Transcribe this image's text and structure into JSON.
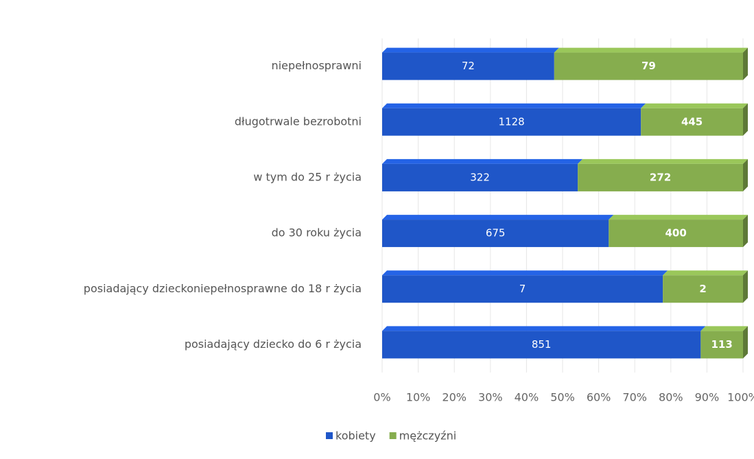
{
  "chart_data": {
    "type": "bar",
    "orientation": "horizontal",
    "stacked": "percent",
    "categories": [
      "niepełnosprawni",
      "długotrwale bezrobotni",
      "w tym do 25 r życia",
      "do 30 roku życia",
      "posiadający dzieckoniepełnosprawne do 18 r życia",
      "posiadający dziecko do 6 r życia"
    ],
    "series": [
      {
        "name": "kobiety",
        "color": "#1f56c8",
        "values": [
          72,
          1128,
          322,
          675,
          7,
          851
        ]
      },
      {
        "name": "mężczyźni",
        "color": "#86ad4e",
        "values": [
          79,
          445,
          272,
          400,
          2,
          113
        ]
      }
    ],
    "xlim": [
      0,
      100
    ],
    "xticks": [
      {
        "value": 0,
        "label": "0%"
      },
      {
        "value": 10,
        "label": "10%"
      },
      {
        "value": 20,
        "label": "20%"
      },
      {
        "value": 30,
        "label": "30%"
      },
      {
        "value": 40,
        "label": "40%"
      },
      {
        "value": 50,
        "label": "50%"
      },
      {
        "value": 60,
        "label": "60%"
      },
      {
        "value": 70,
        "label": "70%"
      },
      {
        "value": 80,
        "label": "80%"
      },
      {
        "value": 90,
        "label": "90%"
      },
      {
        "value": 100,
        "label": "100%"
      }
    ],
    "grid": true,
    "legend": "bottom"
  }
}
